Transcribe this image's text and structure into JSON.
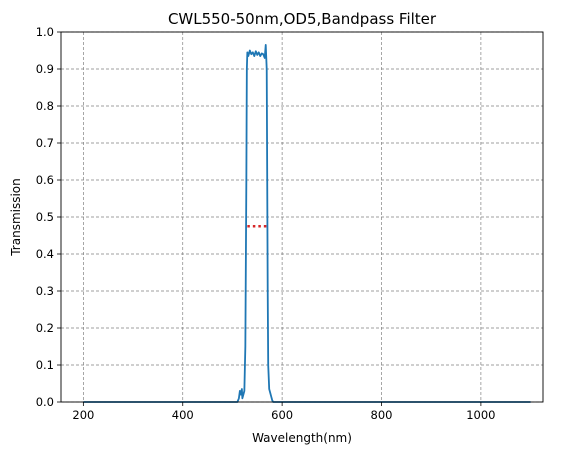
{
  "chart_data": {
    "type": "line",
    "title": "CWL550-50nm,OD5,Bandpass Filter",
    "xlabel": "Wavelength(nm)",
    "ylabel": "Transmission",
    "xlim": [
      155,
      1125
    ],
    "ylim": [
      0,
      1.0
    ],
    "xticks": [
      200,
      400,
      600,
      800,
      1000
    ],
    "yticks": [
      0.0,
      0.1,
      0.2,
      0.3,
      0.4,
      0.5,
      0.6,
      0.7,
      0.8,
      0.9,
      1.0
    ],
    "grid": true,
    "colors": {
      "series": "#1f77b4",
      "marker": "#d62728"
    },
    "series": [
      {
        "x": [
          200,
          300,
          400,
          500,
          510,
          513,
          515,
          517,
          519,
          520,
          522,
          524,
          526,
          528,
          529,
          530,
          532,
          535,
          538,
          541,
          544,
          547,
          550,
          553,
          556,
          559,
          562,
          565,
          567,
          569,
          570,
          571,
          572,
          574,
          576,
          578,
          580,
          582,
          585,
          600,
          700,
          800,
          900,
          1000,
          1100
        ],
        "y": [
          0,
          0,
          0,
          0,
          0,
          0.01,
          0.03,
          0.02,
          0.035,
          0.01,
          0.02,
          0.03,
          0.15,
          0.6,
          0.9,
          0.945,
          0.935,
          0.95,
          0.94,
          0.945,
          0.935,
          0.948,
          0.938,
          0.945,
          0.935,
          0.942,
          0.94,
          0.93,
          0.965,
          0.9,
          0.6,
          0.3,
          0.1,
          0.035,
          0.025,
          0.015,
          0.005,
          0,
          0,
          0,
          0,
          0,
          0,
          0,
          0
        ]
      }
    ],
    "marker": {
      "type": "dotted-hline",
      "x": [
        530,
        570
      ],
      "y": 0.475
    }
  }
}
